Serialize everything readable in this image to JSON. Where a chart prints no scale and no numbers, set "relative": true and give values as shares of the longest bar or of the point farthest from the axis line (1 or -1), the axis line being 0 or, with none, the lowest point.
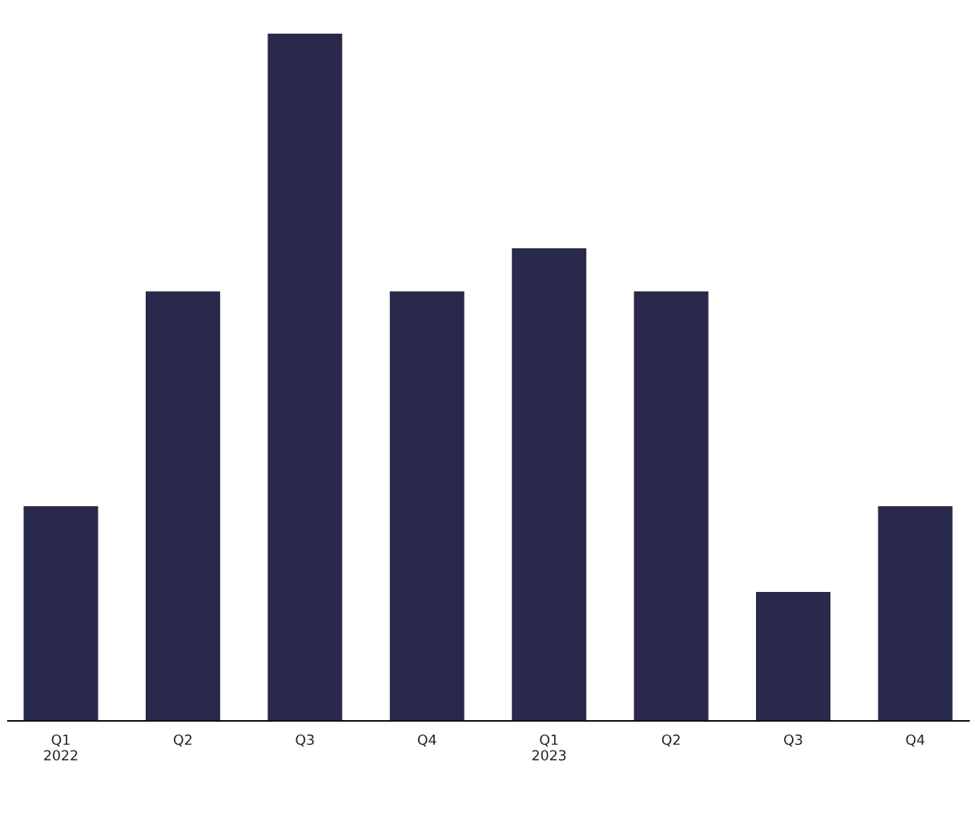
{
  "chart_data": {
    "type": "bar",
    "relative": true,
    "categories": [
      "Q1\n2022",
      "Q2",
      "Q3",
      "Q4",
      "Q1\n2023",
      "Q2",
      "Q3",
      "Q4"
    ],
    "values": [
      0.3125,
      0.625,
      1,
      0.625,
      0.6875,
      0.625,
      0.1875,
      0.3125
    ],
    "color": "#29294b",
    "grid": false,
    "legend": false
  }
}
